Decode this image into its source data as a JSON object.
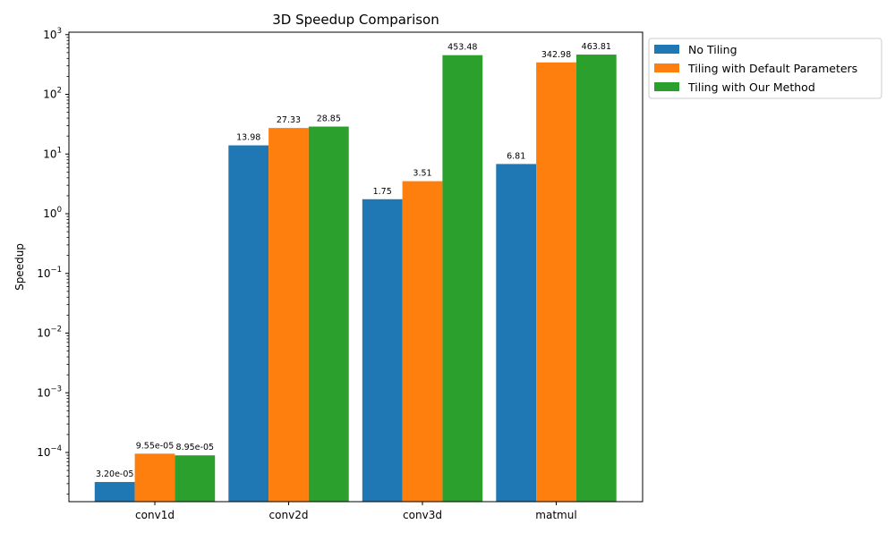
{
  "chart_data": {
    "type": "bar",
    "title": "3D Speedup Comparison",
    "xlabel": "",
    "ylabel": "Speedup",
    "yscale": "log",
    "ylim": [
      1.5e-05,
      1100
    ],
    "y_ticks": [
      {
        "value": 0.0001,
        "base": "10",
        "exp": "−4"
      },
      {
        "value": 0.001,
        "base": "10",
        "exp": "−3"
      },
      {
        "value": 0.01,
        "base": "10",
        "exp": "−2"
      },
      {
        "value": 0.1,
        "base": "10",
        "exp": "−1"
      },
      {
        "value": 1,
        "base": "10",
        "exp": "0"
      },
      {
        "value": 10,
        "base": "10",
        "exp": "1"
      },
      {
        "value": 100,
        "base": "10",
        "exp": "2"
      },
      {
        "value": 1000,
        "base": "10",
        "exp": "3"
      }
    ],
    "categories": [
      "conv1d",
      "conv2d",
      "conv3d",
      "matmul"
    ],
    "series": [
      {
        "name": "No Tiling",
        "color": "#1f77b4",
        "values": [
          3.2e-05,
          13.98,
          1.75,
          6.81
        ],
        "labels": [
          "3.20e-05",
          "13.98",
          "1.75",
          "6.81"
        ]
      },
      {
        "name": "Tiling with Default Parameters",
        "color": "#ff7f0e",
        "values": [
          9.55e-05,
          27.33,
          3.51,
          342.98
        ],
        "labels": [
          "9.55e-05",
          "27.33",
          "3.51",
          "342.98"
        ]
      },
      {
        "name": "Tiling with Our Method",
        "color": "#2ca02c",
        "values": [
          8.95e-05,
          28.85,
          453.48,
          463.81
        ],
        "labels": [
          "8.95e-05",
          "28.85",
          "453.48",
          "463.81"
        ]
      }
    ],
    "legend_position": "outside upper-right",
    "grid": false
  }
}
